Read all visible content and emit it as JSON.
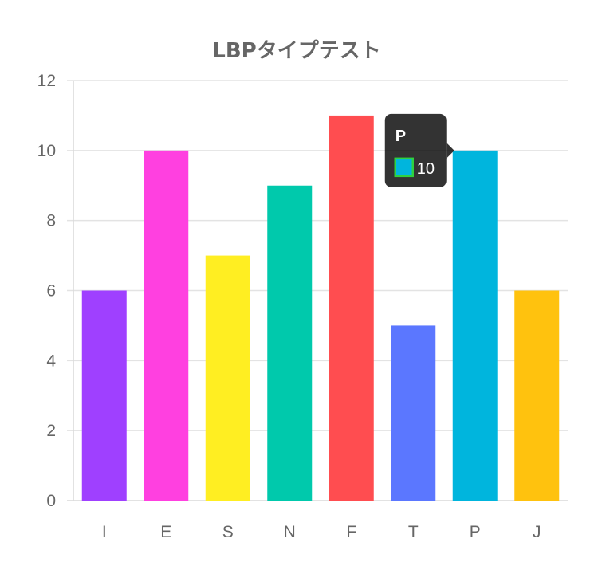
{
  "chart_data": {
    "type": "bar",
    "title": "LBPタイプテスト",
    "categories": [
      "I",
      "E",
      "S",
      "N",
      "F",
      "T",
      "P",
      "J"
    ],
    "values": [
      6,
      10,
      7,
      9,
      11,
      5,
      10,
      6
    ],
    "colors": [
      "#9f40ff",
      "#ff40e0",
      "#ffee22",
      "#00c9ac",
      "#ff4d50",
      "#5b77ff",
      "#00b5dd",
      "#ffc20e"
    ],
    "ylim": [
      0,
      12
    ],
    "yticks": [
      "0",
      "2",
      "4",
      "6",
      "8",
      "10",
      "12"
    ],
    "grid": true,
    "legend": "none",
    "tooltip": {
      "category_index": 6,
      "title": "P",
      "value_label": "10",
      "swatch_color": "#00b5dd",
      "swatch_border_color": "#2fd13f"
    }
  }
}
